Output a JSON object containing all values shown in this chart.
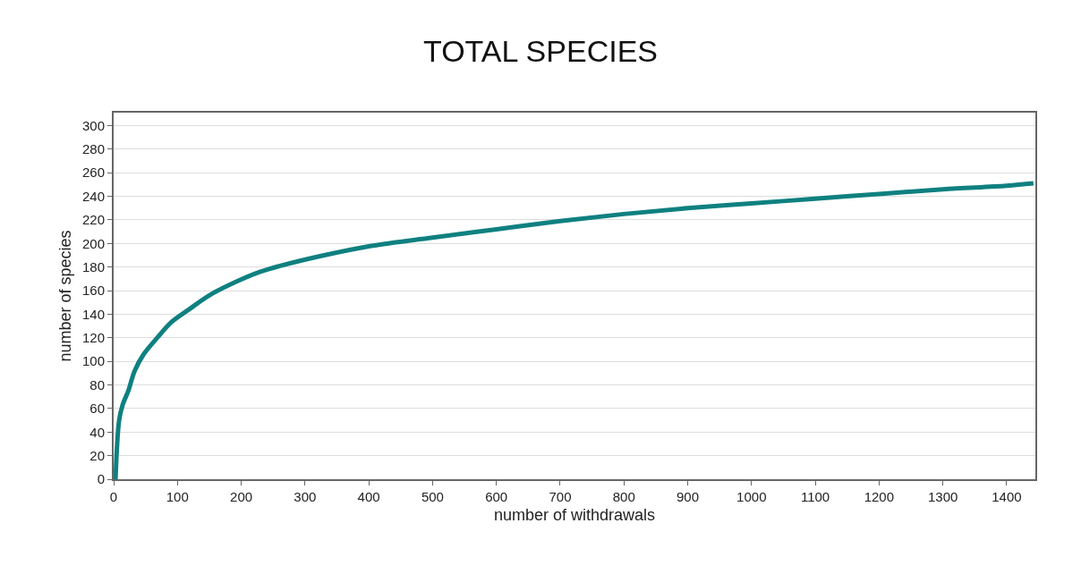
{
  "chart_data": {
    "type": "line",
    "title": "TOTAL SPECIES",
    "xlabel": "number of withdrawals",
    "ylabel": "number of species",
    "x": [
      3,
      5,
      8.6,
      14,
      23,
      33,
      47,
      70,
      90,
      118,
      150,
      190,
      230,
      261,
      330,
      404,
      500,
      600,
      700,
      800,
      900,
      1000,
      1100,
      1200,
      1300,
      1400,
      1442
    ],
    "series": [
      {
        "color": "#0f8080",
        "values": [
          0,
          25,
          50,
          63,
          75,
          92,
          106,
          121,
          133,
          144,
          156,
          167,
          176,
          181,
          190,
          198,
          205,
          212,
          219,
          225,
          230,
          234,
          238,
          242,
          246,
          249,
          251
        ]
      }
    ],
    "xlim": [
      0,
      1445
    ],
    "xticks": [
      0,
      100,
      200,
      300,
      400,
      500,
      600,
      700,
      800,
      900,
      1000,
      1100,
      1200,
      1300,
      1400
    ],
    "ylim": [
      0,
      311
    ],
    "yticks": [
      0,
      20,
      40,
      60,
      80,
      100,
      120,
      140,
      160,
      180,
      200,
      220,
      240,
      260,
      280,
      300
    ],
    "grid": "y",
    "marker": "none",
    "line_style": "solid"
  }
}
